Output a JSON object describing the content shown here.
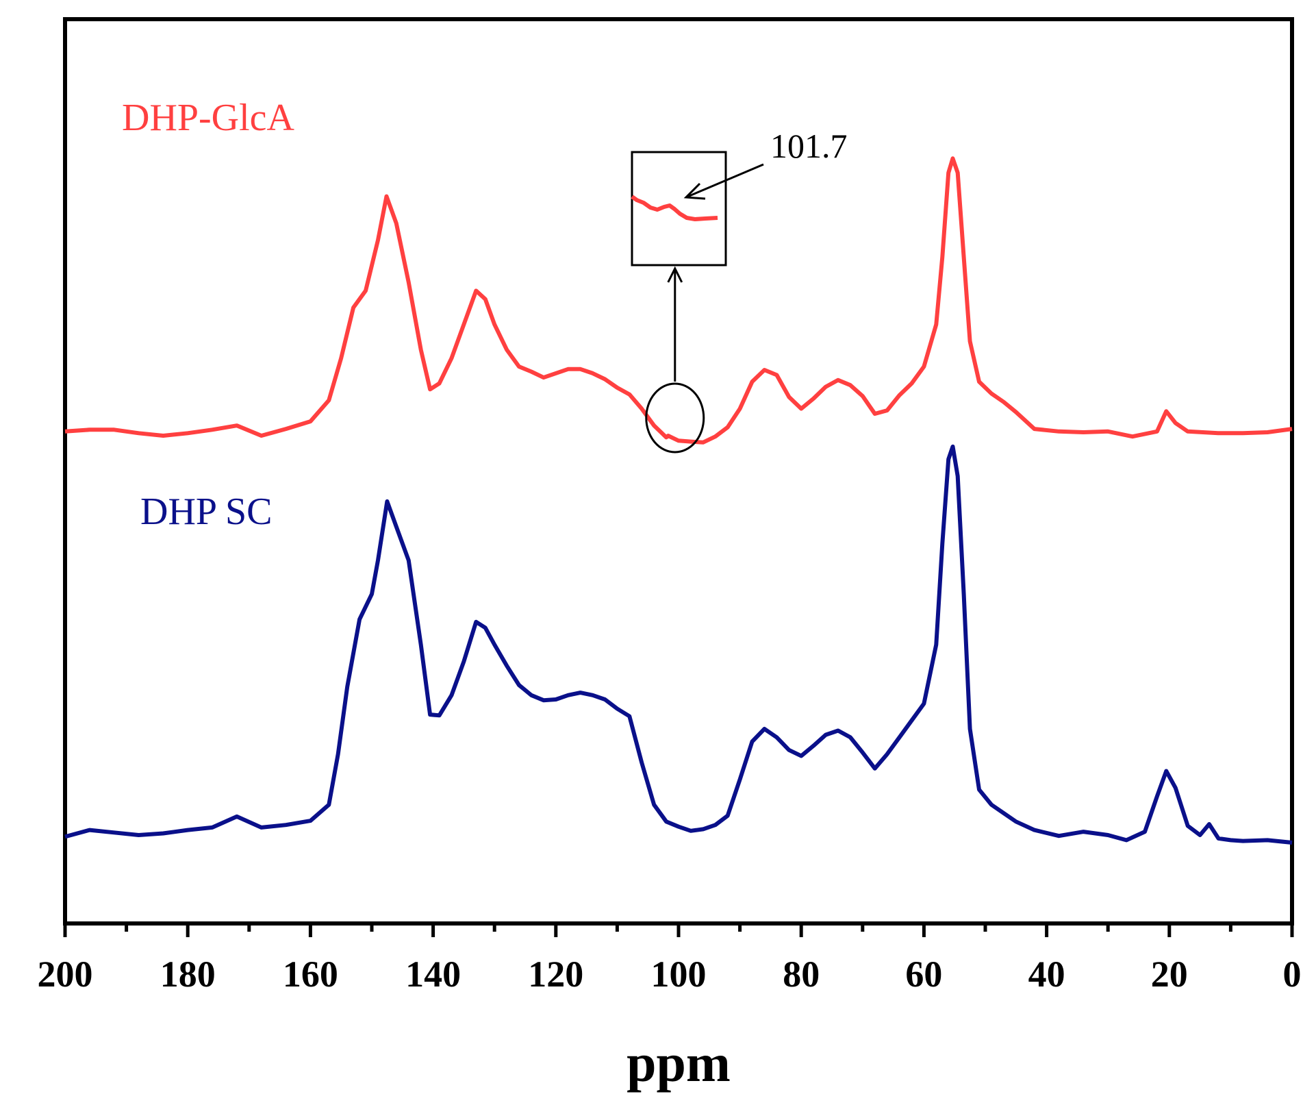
{
  "chart_data": {
    "type": "line",
    "title": "",
    "xlabel": "ppm",
    "ylabel": "",
    "xlim": [
      200,
      0
    ],
    "x_reversed": true,
    "xticks": [
      200,
      180,
      160,
      140,
      120,
      100,
      80,
      60,
      40,
      20,
      0
    ],
    "xtick_labels": [
      "200",
      "180",
      "160",
      "140",
      "120",
      "100",
      "80",
      "60",
      "40",
      "20",
      "0"
    ],
    "y_units": "relative intensity (stacked, offset)",
    "ylim": [
      0,
      1
    ],
    "grid": false,
    "series": [
      {
        "name": "DHP-GlcA",
        "color": "#ff4040",
        "points": [
          [
            200,
            0.553
          ],
          [
            196,
            0.555
          ],
          [
            192,
            0.555
          ],
          [
            188,
            0.551
          ],
          [
            184,
            0.548
          ],
          [
            180,
            0.551
          ],
          [
            176,
            0.555
          ],
          [
            172,
            0.56
          ],
          [
            168,
            0.548
          ],
          [
            164,
            0.556
          ],
          [
            160,
            0.565
          ],
          [
            157,
            0.59
          ],
          [
            155,
            0.64
          ],
          [
            153,
            0.7
          ],
          [
            151,
            0.72
          ],
          [
            149,
            0.78
          ],
          [
            147.6,
            0.832
          ],
          [
            146,
            0.8
          ],
          [
            144,
            0.73
          ],
          [
            142,
            0.65
          ],
          [
            140.5,
            0.603
          ],
          [
            139,
            0.61
          ],
          [
            137,
            0.64
          ],
          [
            135,
            0.68
          ],
          [
            133,
            0.72
          ],
          [
            131.5,
            0.71
          ],
          [
            130,
            0.68
          ],
          [
            128,
            0.65
          ],
          [
            126,
            0.63
          ],
          [
            124,
            0.624
          ],
          [
            122,
            0.617
          ],
          [
            120,
            0.622
          ],
          [
            118,
            0.627
          ],
          [
            116,
            0.627
          ],
          [
            114,
            0.622
          ],
          [
            112,
            0.615
          ],
          [
            110,
            0.605
          ],
          [
            108,
            0.597
          ],
          [
            106,
            0.58
          ],
          [
            104,
            0.56
          ],
          [
            102,
            0.546
          ],
          [
            101.7,
            0.548
          ],
          [
            100,
            0.542
          ],
          [
            98,
            0.541
          ],
          [
            96,
            0.54
          ],
          [
            94,
            0.547
          ],
          [
            92,
            0.558
          ],
          [
            90,
            0.58
          ],
          [
            88,
            0.612
          ],
          [
            86,
            0.626
          ],
          [
            84,
            0.62
          ],
          [
            82,
            0.594
          ],
          [
            80,
            0.58
          ],
          [
            78,
            0.592
          ],
          [
            76,
            0.606
          ],
          [
            74,
            0.614
          ],
          [
            72,
            0.608
          ],
          [
            70,
            0.595
          ],
          [
            68,
            0.574
          ],
          [
            66,
            0.578
          ],
          [
            64,
            0.596
          ],
          [
            62,
            0.61
          ],
          [
            60,
            0.63
          ],
          [
            58,
            0.68
          ],
          [
            57,
            0.76
          ],
          [
            56,
            0.86
          ],
          [
            55.3,
            0.877
          ],
          [
            54.5,
            0.86
          ],
          [
            53.5,
            0.76
          ],
          [
            52.5,
            0.66
          ],
          [
            51,
            0.612
          ],
          [
            49,
            0.598
          ],
          [
            47,
            0.588
          ],
          [
            45,
            0.576
          ],
          [
            42,
            0.556
          ],
          [
            38,
            0.553
          ],
          [
            34,
            0.552
          ],
          [
            30,
            0.553
          ],
          [
            26,
            0.547
          ],
          [
            22,
            0.553
          ],
          [
            20.5,
            0.577
          ],
          [
            19,
            0.563
          ],
          [
            17,
            0.553
          ],
          [
            12,
            0.551
          ],
          [
            8,
            0.551
          ],
          [
            4,
            0.552
          ],
          [
            0,
            0.556
          ]
        ]
      },
      {
        "name": "DHP SC",
        "color": "#0a108a",
        "points": [
          [
            200,
            0.072
          ],
          [
            196,
            0.08
          ],
          [
            192,
            0.077
          ],
          [
            188,
            0.074
          ],
          [
            184,
            0.076
          ],
          [
            180,
            0.08
          ],
          [
            176,
            0.083
          ],
          [
            172,
            0.096
          ],
          [
            168,
            0.083
          ],
          [
            164,
            0.086
          ],
          [
            160,
            0.091
          ],
          [
            157,
            0.11
          ],
          [
            155.5,
            0.17
          ],
          [
            154,
            0.25
          ],
          [
            152,
            0.33
          ],
          [
            150,
            0.36
          ],
          [
            149,
            0.4
          ],
          [
            147.5,
            0.47
          ],
          [
            146,
            0.44
          ],
          [
            144,
            0.4
          ],
          [
            142,
            0.3
          ],
          [
            140.5,
            0.217
          ],
          [
            139,
            0.216
          ],
          [
            137,
            0.24
          ],
          [
            135,
            0.28
          ],
          [
            133,
            0.327
          ],
          [
            131.5,
            0.32
          ],
          [
            130,
            0.3
          ],
          [
            128,
            0.275
          ],
          [
            126,
            0.252
          ],
          [
            124,
            0.24
          ],
          [
            122,
            0.234
          ],
          [
            120,
            0.235
          ],
          [
            118,
            0.24
          ],
          [
            116,
            0.243
          ],
          [
            114,
            0.24
          ],
          [
            112,
            0.235
          ],
          [
            110,
            0.224
          ],
          [
            108,
            0.215
          ],
          [
            106,
            0.16
          ],
          [
            104,
            0.11
          ],
          [
            102,
            0.09
          ],
          [
            100,
            0.084
          ],
          [
            98,
            0.079
          ],
          [
            96,
            0.081
          ],
          [
            94,
            0.086
          ],
          [
            92,
            0.097
          ],
          [
            90,
            0.14
          ],
          [
            88,
            0.185
          ],
          [
            86,
            0.2
          ],
          [
            84,
            0.19
          ],
          [
            82,
            0.175
          ],
          [
            80,
            0.168
          ],
          [
            78,
            0.18
          ],
          [
            76,
            0.193
          ],
          [
            74,
            0.198
          ],
          [
            72,
            0.19
          ],
          [
            70,
            0.172
          ],
          [
            68,
            0.153
          ],
          [
            66,
            0.17
          ],
          [
            64,
            0.19
          ],
          [
            62,
            0.21
          ],
          [
            60,
            0.23
          ],
          [
            58,
            0.3
          ],
          [
            57,
            0.42
          ],
          [
            56,
            0.52
          ],
          [
            55.3,
            0.535
          ],
          [
            54.5,
            0.5
          ],
          [
            53.5,
            0.36
          ],
          [
            52.5,
            0.2
          ],
          [
            51,
            0.128
          ],
          [
            49,
            0.11
          ],
          [
            47,
            0.1
          ],
          [
            45,
            0.09
          ],
          [
            42,
            0.08
          ],
          [
            38,
            0.073
          ],
          [
            34,
            0.078
          ],
          [
            30,
            0.074
          ],
          [
            27,
            0.068
          ],
          [
            24,
            0.078
          ],
          [
            22,
            0.12
          ],
          [
            20.5,
            0.15
          ],
          [
            19,
            0.13
          ],
          [
            17,
            0.085
          ],
          [
            15,
            0.074
          ],
          [
            13.5,
            0.087
          ],
          [
            12,
            0.07
          ],
          [
            10,
            0.068
          ],
          [
            8,
            0.067
          ],
          [
            4,
            0.068
          ],
          [
            0,
            0.065
          ]
        ]
      }
    ],
    "annotations": [
      {
        "text": "101.7",
        "x_ppm": 101.7,
        "series": "DHP-GlcA",
        "marker": "circle-inset-zoom"
      }
    ]
  }
}
